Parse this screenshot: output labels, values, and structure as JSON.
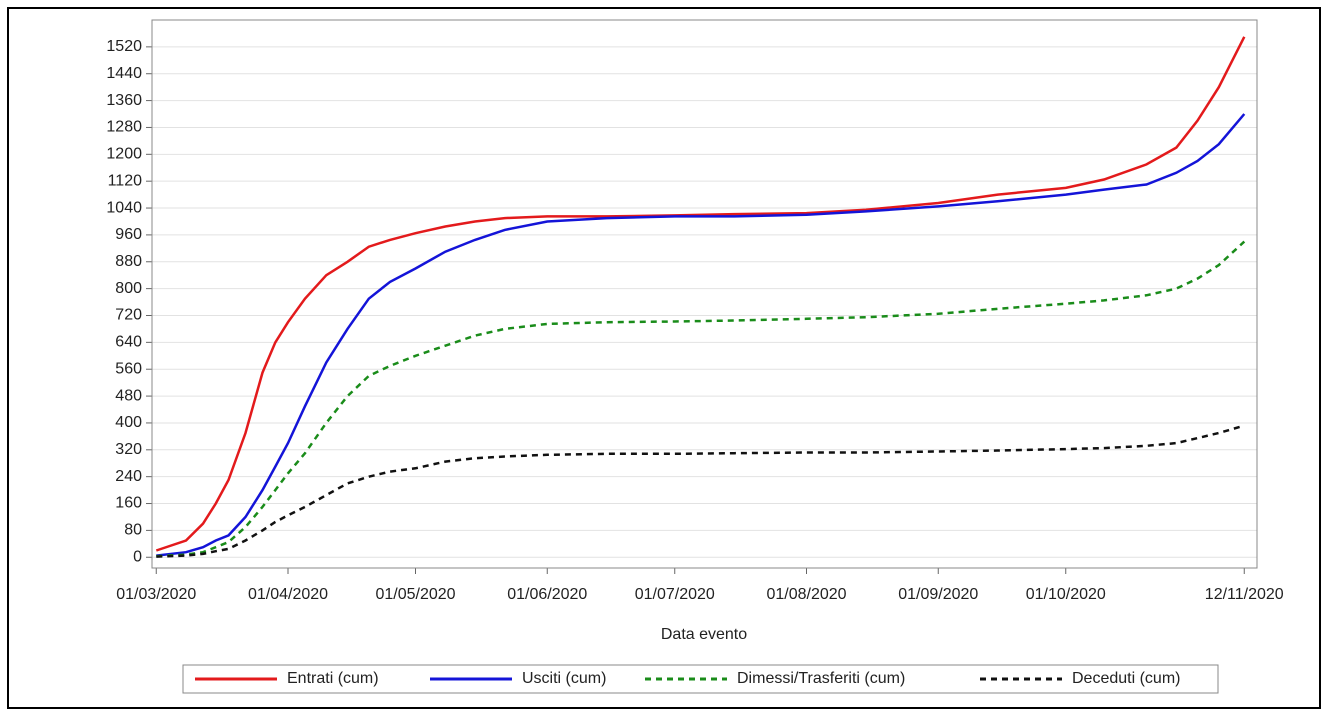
{
  "chart_data": {
    "type": "line",
    "x_label": "Data evento",
    "x": [
      "01/03/2020",
      "08/03/2020",
      "12/03/2020",
      "15/03/2020",
      "18/03/2020",
      "22/03/2020",
      "26/03/2020",
      "29/03/2020",
      "01/04/2020",
      "05/04/2020",
      "10/04/2020",
      "15/04/2020",
      "20/04/2020",
      "25/04/2020",
      "01/05/2020",
      "08/05/2020",
      "15/05/2020",
      "22/05/2020",
      "01/06/2020",
      "15/06/2020",
      "01/07/2020",
      "15/07/2020",
      "01/08/2020",
      "15/08/2020",
      "01/09/2020",
      "15/09/2020",
      "01/10/2020",
      "10/10/2020",
      "20/10/2020",
      "27/10/2020",
      "01/11/2020",
      "06/11/2020",
      "12/11/2020"
    ],
    "series": [
      {
        "name": "Entrati (cum)",
        "color": "#e31a1c",
        "style": "solid",
        "values": [
          20,
          50,
          100,
          160,
          230,
          370,
          550,
          640,
          700,
          770,
          840,
          880,
          925,
          945,
          965,
          985,
          1000,
          1010,
          1015,
          1015,
          1018,
          1022,
          1025,
          1035,
          1055,
          1080,
          1100,
          1125,
          1170,
          1220,
          1300,
          1400,
          1550
        ]
      },
      {
        "name": "Usciti (cum)",
        "color": "#1414d8",
        "style": "solid",
        "values": [
          5,
          15,
          30,
          50,
          65,
          120,
          200,
          270,
          340,
          450,
          580,
          680,
          770,
          820,
          860,
          910,
          945,
          975,
          1000,
          1010,
          1015,
          1015,
          1020,
          1030,
          1045,
          1060,
          1080,
          1095,
          1110,
          1145,
          1180,
          1230,
          1320
        ]
      },
      {
        "name": "Dimessi/Trasferiti (cum)",
        "color": "#1a8c1a",
        "style": "dashed",
        "values": [
          3,
          8,
          15,
          30,
          45,
          90,
          150,
          200,
          250,
          310,
          400,
          480,
          540,
          570,
          600,
          630,
          660,
          680,
          695,
          700,
          702,
          705,
          710,
          715,
          725,
          740,
          755,
          765,
          780,
          800,
          830,
          870,
          940
        ]
      },
      {
        "name": "Deceduti (cum)",
        "color": "#111111",
        "style": "dashed",
        "values": [
          2,
          5,
          10,
          18,
          25,
          50,
          80,
          105,
          125,
          150,
          185,
          220,
          240,
          255,
          265,
          285,
          295,
          300,
          305,
          308,
          308,
          310,
          312,
          312,
          315,
          318,
          322,
          325,
          332,
          340,
          355,
          370,
          392
        ]
      }
    ],
    "xlim": [
      "29/02/2020",
      "15/11/2020"
    ],
    "xticks": [
      "01/03/2020",
      "01/04/2020",
      "01/05/2020",
      "01/06/2020",
      "01/07/2020",
      "01/08/2020",
      "01/09/2020",
      "01/10/2020",
      "12/11/2020"
    ],
    "ylim": [
      -32,
      1600
    ],
    "yticks": [
      0,
      80,
      160,
      240,
      320,
      400,
      480,
      560,
      640,
      720,
      800,
      880,
      960,
      1040,
      1120,
      1200,
      1280,
      1360,
      1440,
      1520
    ],
    "grid": true,
    "legend": "bottom"
  }
}
